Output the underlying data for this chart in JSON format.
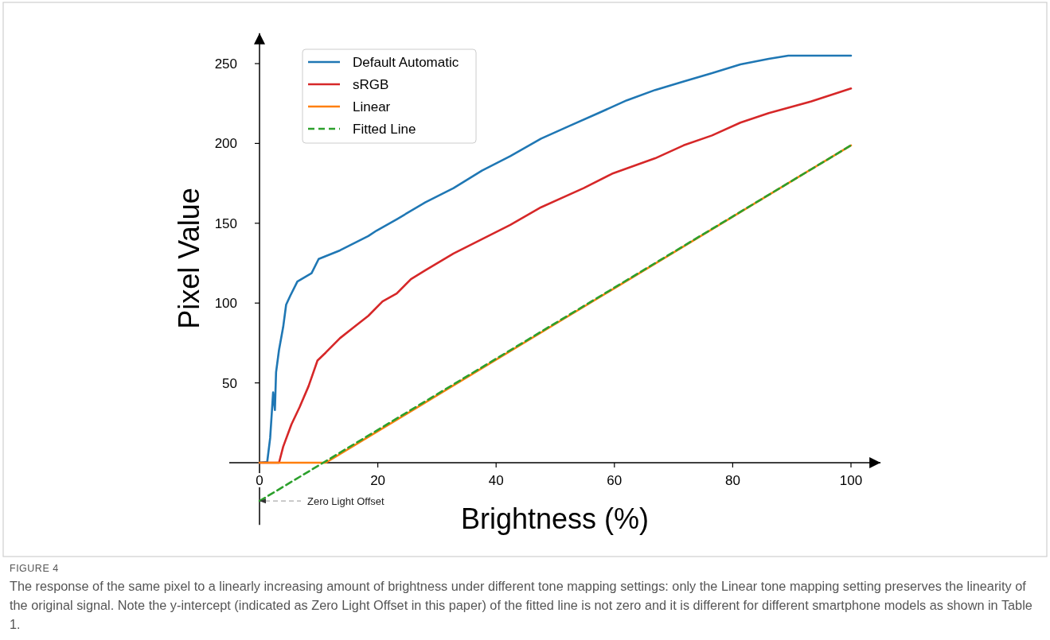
{
  "chart_data": {
    "type": "line",
    "xlabel": "Brightness (%)",
    "ylabel": "Pixel Value",
    "xlim": [
      0,
      105
    ],
    "ylim": [
      -39,
      269
    ],
    "xticks": [
      0,
      20,
      40,
      60,
      80,
      100
    ],
    "yticks": [
      50,
      100,
      150,
      200,
      250
    ],
    "grid": false,
    "legend": "top left",
    "series": [
      {
        "name": "Default Automatic",
        "color": "#1f77b4",
        "x": [
          0,
          1.3,
          1.8,
          2.3,
          2.6,
          2.8,
          3.3,
          4.0,
          4.5,
          5.2,
          6.4,
          8.8,
          10,
          13.6,
          18.4,
          19.8,
          23.2,
          28,
          32.8,
          37.6,
          42.4,
          47.6,
          52.4,
          57.3,
          62.1,
          66.9,
          71.7,
          76.5,
          81.3,
          86.1,
          89.4,
          100
        ],
        "values": [
          0,
          0.5,
          15.5,
          44,
          33,
          56.7,
          70.7,
          85,
          99,
          104.6,
          113.5,
          118.7,
          127.6,
          133,
          142,
          145.4,
          152.5,
          163,
          172,
          183,
          192,
          203,
          211,
          219,
          227,
          233.5,
          238.8,
          244,
          249.5,
          253,
          255,
          255
        ]
      },
      {
        "name": "sRGB",
        "color": "#d62728",
        "x": [
          0,
          3.3,
          4.0,
          5.4,
          6.8,
          8.3,
          9.8,
          11.2,
          13.6,
          16.0,
          18.4,
          20.8,
          23.2,
          25.6,
          28,
          32.8,
          37.6,
          42.4,
          47.6,
          54.8,
          59.6,
          66.9,
          71.7,
          76.5,
          81.3,
          86.1,
          93.3,
          100
        ],
        "values": [
          0,
          0,
          10,
          24,
          35,
          48,
          64,
          69,
          78,
          85,
          92,
          101,
          106,
          115,
          120.5,
          131,
          140,
          149,
          160,
          172,
          181,
          190.7,
          198.8,
          205,
          213,
          219,
          226.3,
          234.4
        ]
      },
      {
        "name": "Linear",
        "color": "#ff7f0e",
        "x": [
          0,
          11.2,
          20,
          30,
          40,
          50,
          60,
          70,
          80,
          90,
          100
        ],
        "values": [
          0,
          0,
          19.7,
          42.1,
          64.5,
          86.9,
          109.3,
          131.7,
          154.1,
          176.5,
          198.8
        ]
      },
      {
        "name": "Fitted Line",
        "color": "#2ca02c",
        "line_style": "dashed",
        "x": [
          0,
          100
        ],
        "values": [
          -24,
          198.8
        ]
      }
    ],
    "annotations": [
      {
        "text": "Zero Light Offset",
        "x": 0,
        "y": -24
      },
      "FIGURE 4",
      "The response of the same pixel to a linearly increasing amount of brightness under different tone mapping settings: only the Linear tone mapping setting preserves the linearity of the original signal. Note the y-intercept (indicated as Zero Light Offset in this paper) of the fitted line is not zero and it is different for different smartphone models as shown in Table 1."
    ]
  }
}
